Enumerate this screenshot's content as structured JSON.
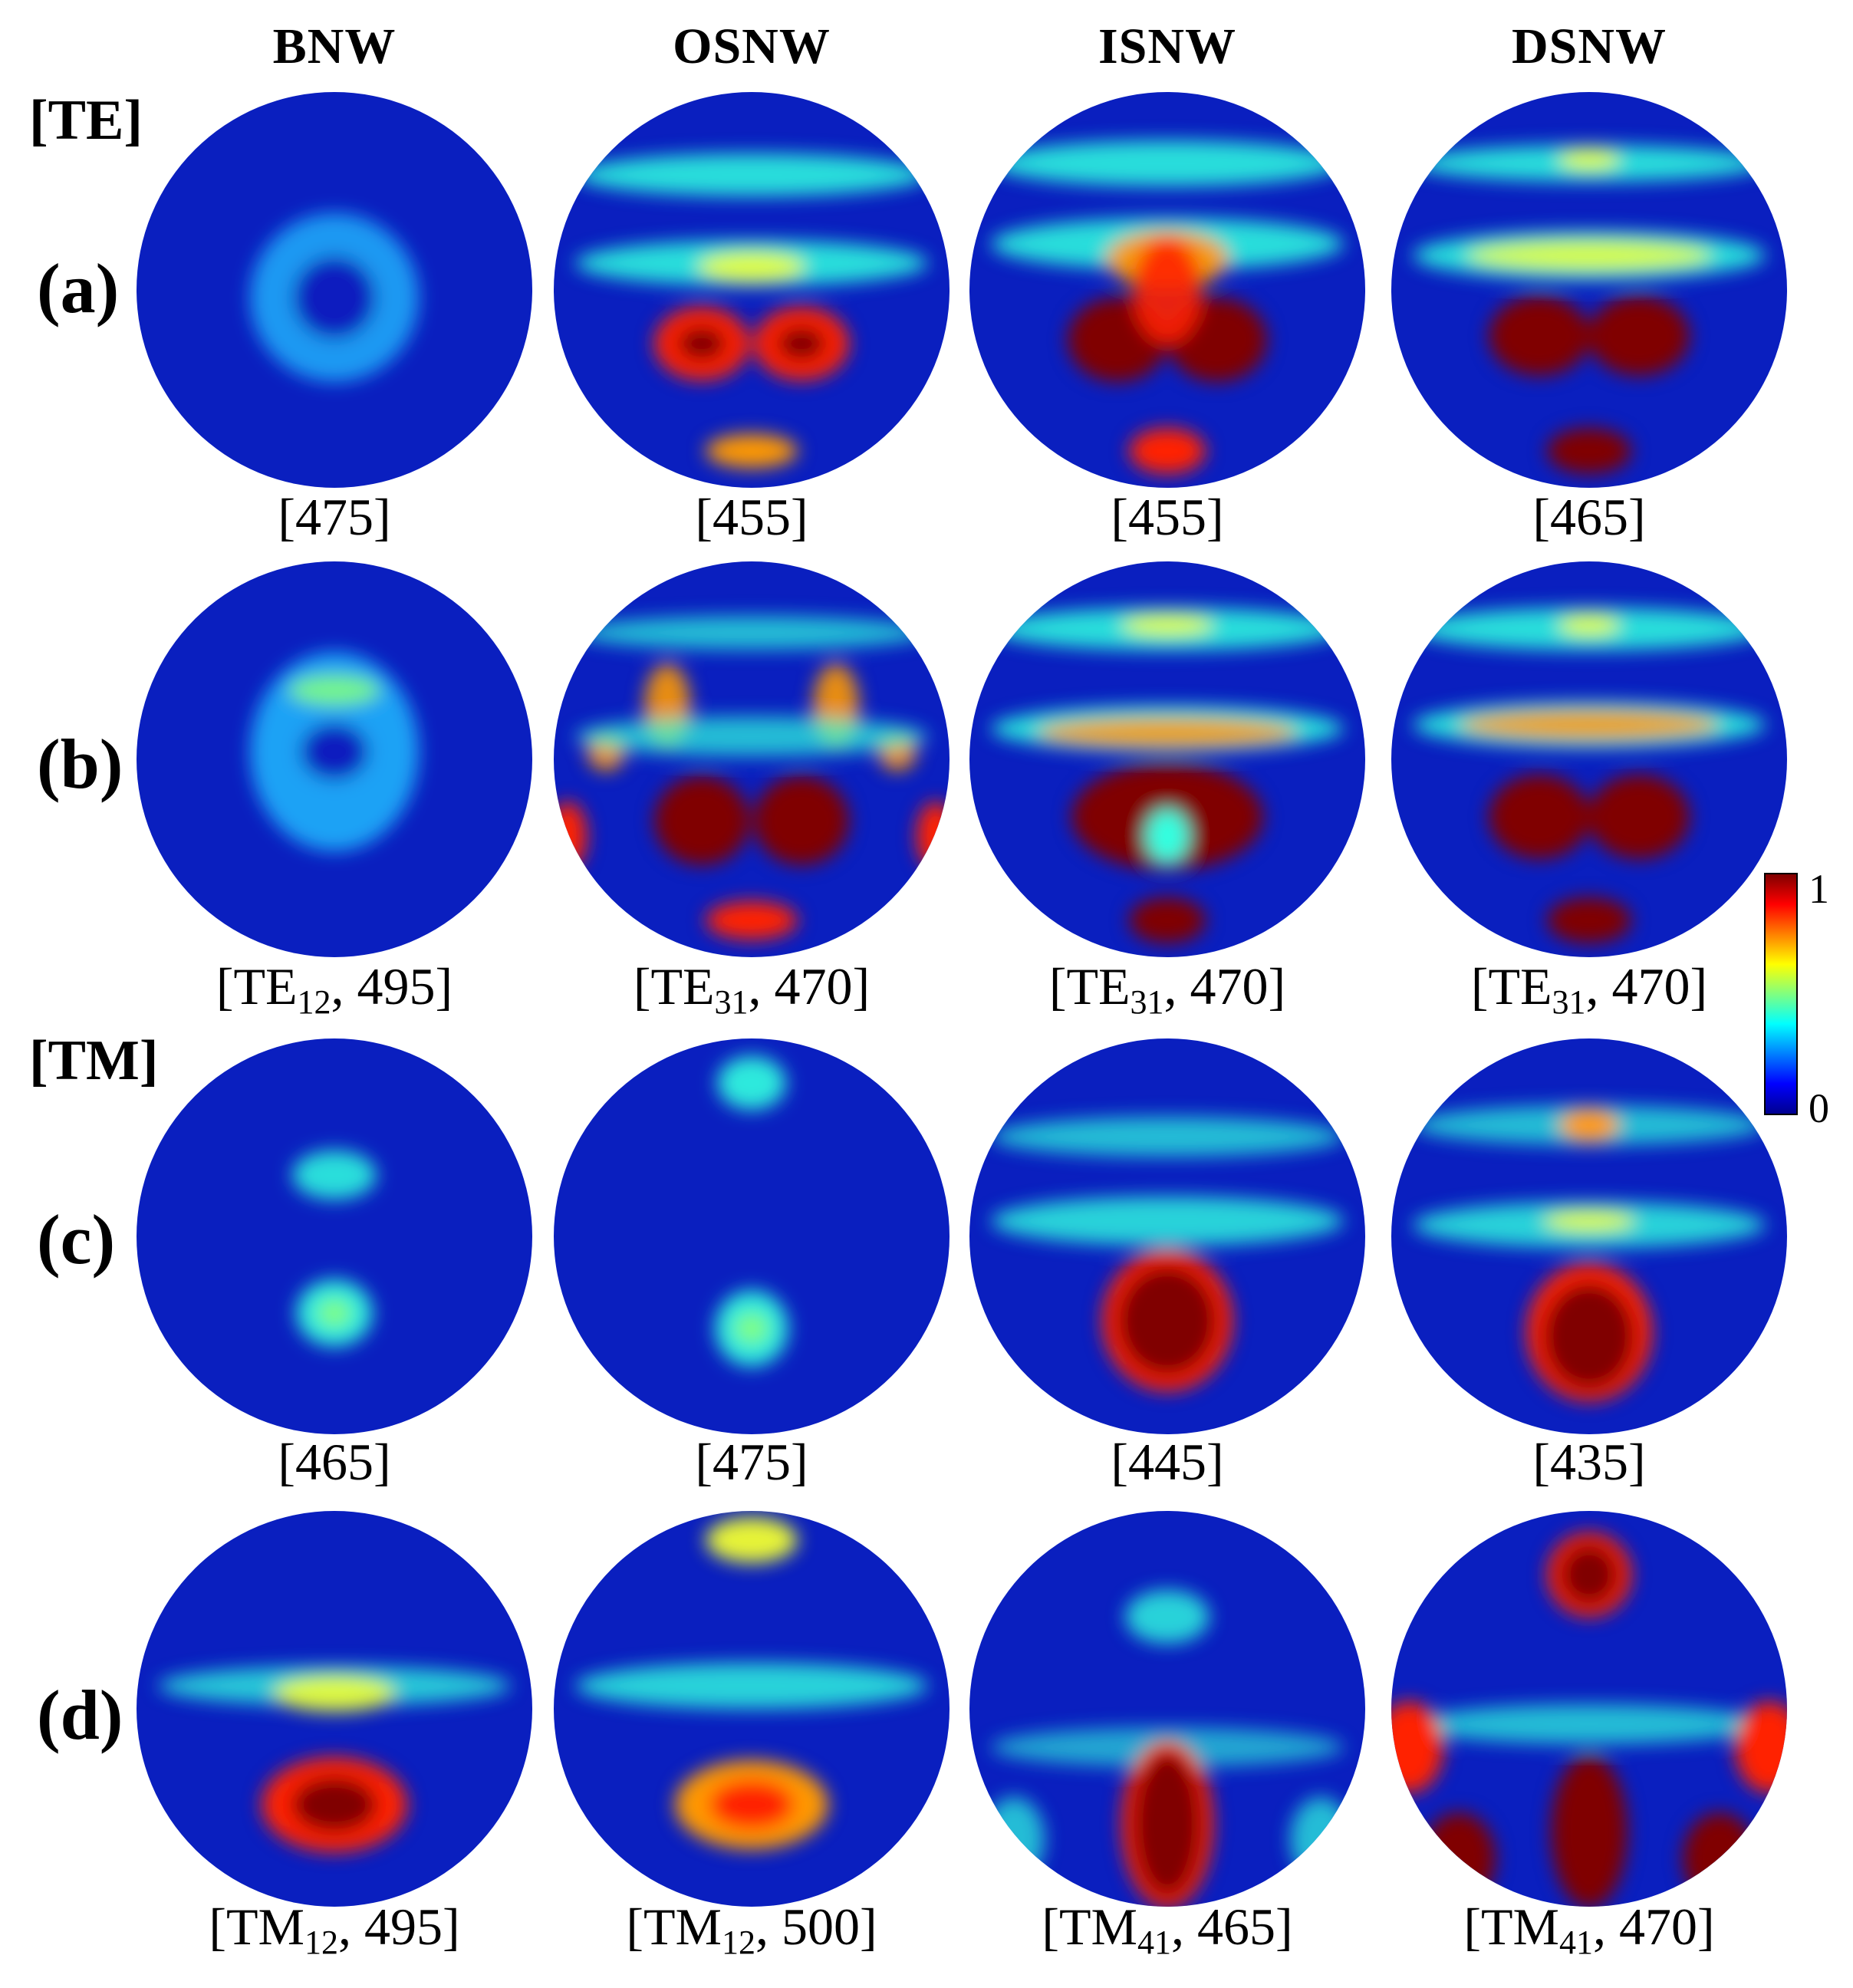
{
  "column_headers": [
    "BNW",
    "OSNW",
    "ISNW",
    "DSNW"
  ],
  "section_labels": {
    "te": "[TE]",
    "tm": "[TM]"
  },
  "row_labels": [
    "(a)",
    "(b)",
    "(c)",
    "(d)"
  ],
  "captions": {
    "row_a": [
      "[475]",
      "[455]",
      "[455]",
      "[465]"
    ],
    "row_b": [
      {
        "open": "[TE",
        "sub": "12",
        "rest": ", 495]"
      },
      {
        "open": "[TE",
        "sub": "31",
        "rest": ", 470]"
      },
      {
        "open": "[TE",
        "sub": "31",
        "rest": ", 470]"
      },
      {
        "open": "[TE",
        "sub": "31",
        "rest": ", 470]"
      }
    ],
    "row_c": [
      "[465]",
      "[475]",
      "[445]",
      "[435]"
    ],
    "row_d": [
      {
        "open": "[TM",
        "sub": "12",
        "rest": ", 495]"
      },
      {
        "open": "[TM",
        "sub": "12",
        "rest": ", 500]"
      },
      {
        "open": "[TM",
        "sub": "41",
        "rest": ", 465]"
      },
      {
        "open": "[TM",
        "sub": "41",
        "rest": ", 470]"
      }
    ]
  },
  "colorbar": {
    "max_label": "1",
    "min_label": "0",
    "colormap": [
      "#00008f",
      "#0000ff",
      "#0080ff",
      "#00ffff",
      "#80ff80",
      "#ffff00",
      "#ff8000",
      "#ff0000",
      "#800000"
    ]
  },
  "colors": {
    "background_field": "#0a1fbf",
    "ring_field": "#2b7bff"
  }
}
